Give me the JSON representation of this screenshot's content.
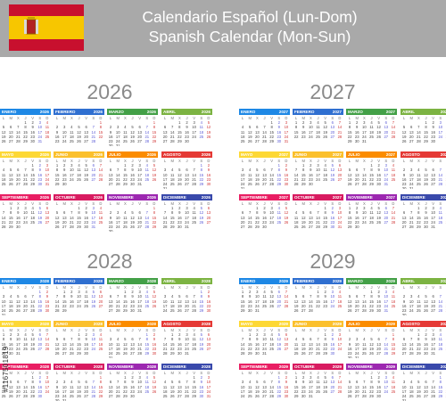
{
  "header": {
    "title_es": "Calendario Español (Lun-Dom)",
    "title_en": "Spanish Calendar (Mon-Sun)"
  },
  "flag": {
    "name": "spain-flag-icon",
    "red": "#c8102e",
    "yellow": "#f7c600"
  },
  "colors": {
    "header_bg": "#a9a9a9",
    "months": [
      "#1e88e5",
      "#2f6fd0",
      "#43a047",
      "#7cb342",
      "#fdd835",
      "#fbc02d",
      "#fb8c00",
      "#e53935",
      "#e91e63",
      "#d81b60",
      "#9c27b0",
      "#3949ab"
    ]
  },
  "day_letters": [
    "L",
    "M",
    "X",
    "J",
    "V",
    "S",
    "D"
  ],
  "watermark_id": "#1167501819",
  "years": [
    {
      "year": "2026",
      "months": [
        {
          "name": "ENERO",
          "year": "2026"
        },
        {
          "name": "FEBRERO",
          "year": "2026"
        },
        {
          "name": "MARZO",
          "year": "2026"
        },
        {
          "name": "ABRIL",
          "year": "2026"
        },
        {
          "name": "MAYO",
          "year": "2026"
        },
        {
          "name": "JUNIO",
          "year": "2026"
        },
        {
          "name": "JULIO",
          "year": "2026"
        },
        {
          "name": "AGOSTO",
          "year": "2026"
        },
        {
          "name": "SEPTIEMBRE",
          "year": "2026"
        },
        {
          "name": "OCTUBRE",
          "year": "2026"
        },
        {
          "name": "NOVIEMBRE",
          "year": "2026"
        },
        {
          "name": "DICIEMBRE",
          "year": "2026"
        }
      ]
    },
    {
      "year": "2027",
      "months": [
        {
          "name": "ENERO",
          "year": "2027"
        },
        {
          "name": "FEBRERO",
          "year": "2027"
        },
        {
          "name": "MARZO",
          "year": "2027"
        },
        {
          "name": "ABRIL",
          "year": "2027"
        },
        {
          "name": "MAYO",
          "year": "2027"
        },
        {
          "name": "JUNIO",
          "year": "2027"
        },
        {
          "name": "JULIO",
          "year": "2027"
        },
        {
          "name": "AGOSTO",
          "year": "2027"
        },
        {
          "name": "SEPTIEMBRE",
          "year": "2027"
        },
        {
          "name": "OCTUBRE",
          "year": "2027"
        },
        {
          "name": "NOVIEMBRE",
          "year": "2027"
        },
        {
          "name": "DICIEMBRE",
          "year": "2027"
        }
      ]
    },
    {
      "year": "2028",
      "months": [
        {
          "name": "ENERO",
          "year": "2028"
        },
        {
          "name": "FEBRERO",
          "year": "2028"
        },
        {
          "name": "MARZO",
          "year": "2028"
        },
        {
          "name": "ABRIL",
          "year": "2028"
        },
        {
          "name": "MAYO",
          "year": "2028"
        },
        {
          "name": "JUNIO",
          "year": "2028"
        },
        {
          "name": "JULIO",
          "year": "2028"
        },
        {
          "name": "AGOSTO",
          "year": "2028"
        },
        {
          "name": "SEPTIEMBRE",
          "year": "2028"
        },
        {
          "name": "OCTUBRE",
          "year": "2028"
        },
        {
          "name": "NOVIEMBRE",
          "year": "2028"
        },
        {
          "name": "DICIEMBRE",
          "year": "2028"
        }
      ]
    },
    {
      "year": "2029",
      "months": [
        {
          "name": "ENERO",
          "year": "2029"
        },
        {
          "name": "FEBRERO",
          "year": "2029"
        },
        {
          "name": "MARZO",
          "year": "2029"
        },
        {
          "name": "ABRIL",
          "year": "2029"
        },
        {
          "name": "MAYO",
          "year": "2029"
        },
        {
          "name": "JUNIO",
          "year": "2029"
        },
        {
          "name": "JULIO",
          "year": "2029"
        },
        {
          "name": "AGOSTO",
          "year": "2029"
        },
        {
          "name": "SEPTIEMBRE",
          "year": "2029"
        },
        {
          "name": "OCTUBRE",
          "year": "2029"
        },
        {
          "name": "NOVIEMBRE",
          "year": "2029"
        },
        {
          "name": "DICIEMBRE",
          "year": "2029"
        }
      ]
    }
  ]
}
